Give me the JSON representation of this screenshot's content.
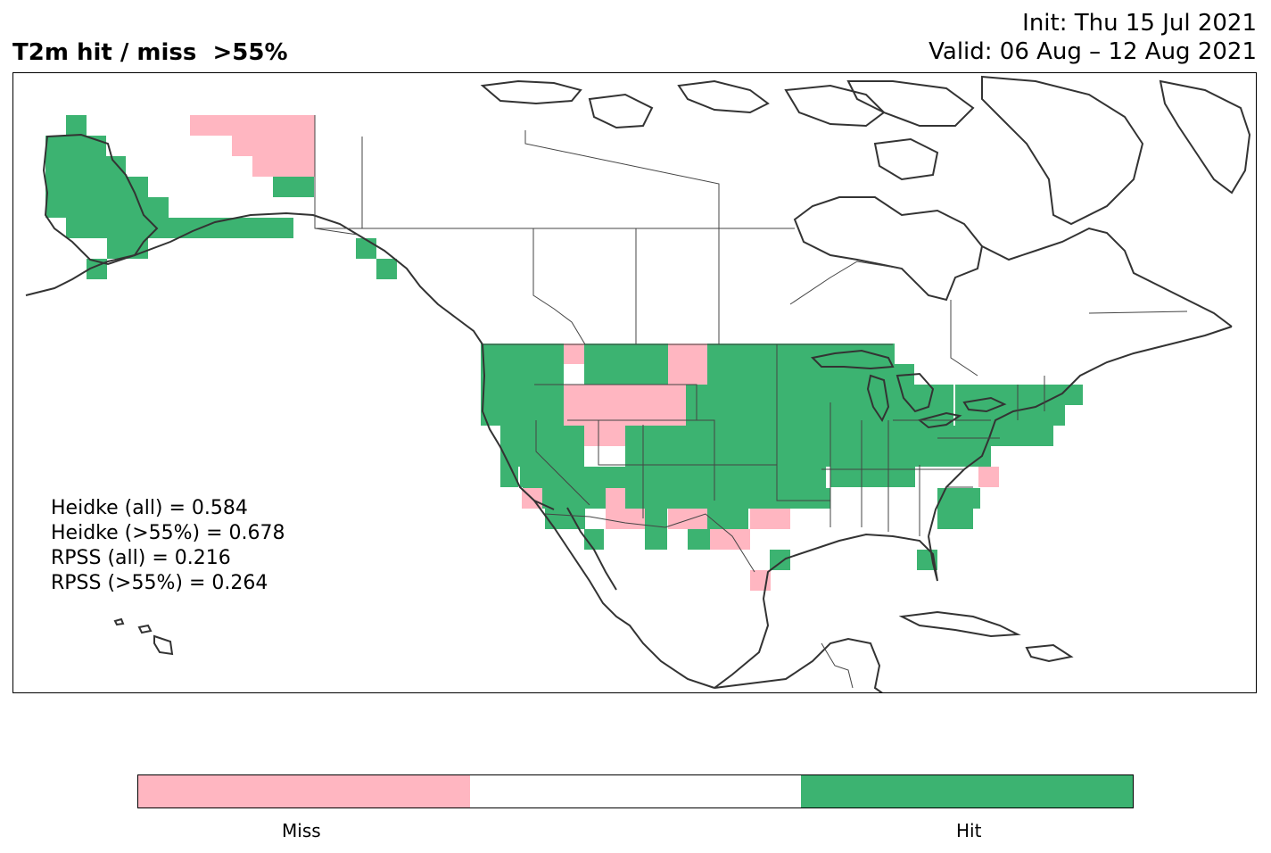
{
  "header": {
    "title": "T2m hit / miss  >55%",
    "init": "Init: Thu 15 Jul 2021",
    "valid": "Valid: 06 Aug – 12 Aug 2021"
  },
  "scores": {
    "heidke_all": "Heidke (all) = 0.584",
    "heidke_55": "Heidke (>55%) = 0.678",
    "rpss_all": "RPSS (all) = 0.216",
    "rpss_55": "RPSS (>55%) = 0.264"
  },
  "colors": {
    "hit": "#3cb371",
    "miss": "#ffb6c1",
    "neutral": "#ffffff",
    "coast": "#333333"
  },
  "colorbar": {
    "segments": [
      "miss",
      "neutral",
      "hit"
    ],
    "miss_label": "Miss",
    "hit_label": "Hit"
  }
}
